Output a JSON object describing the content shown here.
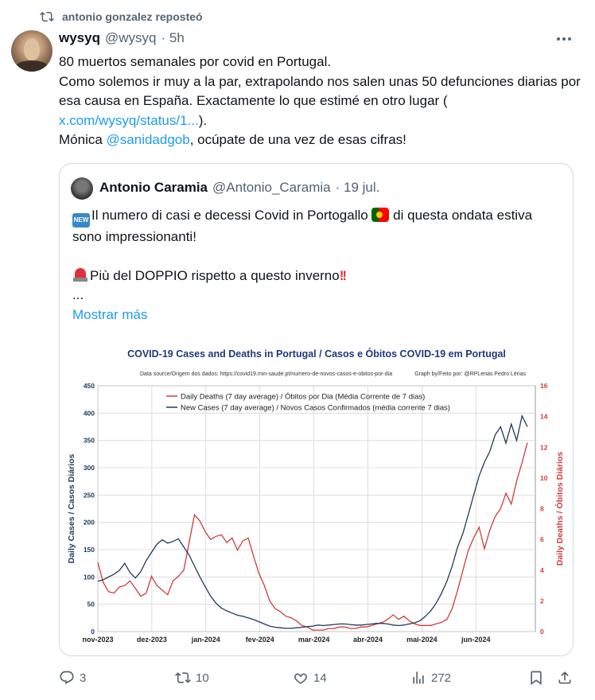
{
  "repost": {
    "label": "antonio gonzalez reposteó"
  },
  "tweet": {
    "name": "wysyq",
    "handle": "@wysyq",
    "time": "· 5h",
    "line1": "80 muertos semanales por covid en Portugal.",
    "line2": "Como solemos ir muy a la par, extrapolando nos salen unas 50 defunciones diarias por esa causa en España. Exactamente lo que estimé en otro lugar ( ",
    "link": "x.com/wysyq/status/1...",
    "line2_end": ").",
    "line3_start": "Mónica ",
    "mention": "@sanidadgob",
    "line3_end": ", ocúpate de una vez de esas cifras!"
  },
  "quote": {
    "name": "Antonio Caramia",
    "handle": "@Antonio_Caramia",
    "time": "· 19 jul.",
    "line1": "Il numero di casi e decessi Covid in Portogallo ",
    "line1_end": " di questa ondata estiva sono impressionanti!",
    "line2": "Più del DOPPIO rispetto a questo inverno",
    "line2_bang": "!!",
    "ellipsis": "...",
    "show_more": "Mostrar más"
  },
  "actions": {
    "replies": "3",
    "reposts": "10",
    "likes": "14",
    "views": "272"
  },
  "colors": {
    "cases": "#1f3a5a",
    "deaths": "#d03c3c",
    "title": "#1f3a7a",
    "link": "#1d9bf0"
  },
  "chart_data": {
    "type": "line",
    "title": "COVID-19 Cases and Deaths in Portugal  /  Casos e Óbitos COVID-19 em Portugal",
    "source": "Data source/Origem dos dados: https://covid19.min-saude.pt/numero-de-novos-casos-e-obitos-por-dia",
    "credit": "Graph by/Feito por: @RPLerias Pedro Lérias",
    "ylabel": "Daily Cases / Casos Diários",
    "y2label": "Daily Deaths / Óbitos Diários",
    "ylim": [
      0,
      450
    ],
    "y2lim": [
      0,
      16
    ],
    "yticks": [
      "0",
      "50",
      "100",
      "150",
      "200",
      "250",
      "300",
      "350",
      "400",
      "450"
    ],
    "y2ticks": [
      "0",
      "2",
      "4",
      "6",
      "8",
      "10",
      "12",
      "14",
      "16"
    ],
    "xticks": [
      "nov-2023",
      "dez-2023",
      "jan-2024",
      "fev-2024",
      "mar-2024",
      "abr-2024",
      "mai-2024",
      "jun-2024"
    ],
    "legend_position": "top",
    "series": [
      {
        "name": "Daily Deaths (7 day average) / Óbitos por Dia (Média Corrente de 7 dias)",
        "axis": "right",
        "x": [
          0,
          3,
          6,
          9,
          12,
          15,
          18,
          21,
          24,
          27,
          30,
          33,
          36,
          39,
          42,
          45,
          48,
          51,
          54,
          57,
          60,
          63,
          66,
          69,
          72,
          75,
          78,
          81,
          84,
          87,
          90,
          93,
          96,
          99,
          102,
          105,
          108,
          111,
          114,
          117,
          120,
          123,
          126,
          129,
          132,
          135,
          138,
          141,
          144,
          147,
          150,
          153,
          156,
          159,
          162,
          165,
          168,
          171,
          174,
          177,
          180,
          183,
          186,
          189,
          192,
          195,
          198,
          201,
          204,
          207,
          210,
          213,
          216,
          219,
          222,
          225,
          228,
          231,
          234,
          237,
          240
        ],
        "values": [
          4.5,
          3.2,
          2.6,
          2.5,
          2.9,
          3.0,
          3.3,
          2.8,
          2.3,
          2.5,
          3.6,
          3.0,
          2.7,
          2.4,
          3.3,
          3.6,
          4.0,
          5.8,
          7.6,
          7.2,
          6.5,
          6.0,
          6.2,
          6.3,
          5.8,
          6.1,
          5.3,
          5.9,
          6.1,
          4.9,
          3.8,
          3.0,
          2.0,
          1.5,
          1.3,
          1.0,
          0.9,
          0.7,
          0.4,
          0.3,
          0.1,
          0.1,
          0.1,
          0.2,
          0.2,
          0.3,
          0.3,
          0.2,
          0.2,
          0.3,
          0.3,
          0.4,
          0.5,
          0.6,
          0.8,
          1.1,
          0.8,
          1.0,
          0.7,
          0.5,
          0.4,
          0.4,
          0.4,
          0.5,
          0.6,
          0.8,
          1.5,
          2.7,
          4.0,
          5.3,
          6.1,
          6.8,
          5.4,
          6.6,
          7.5,
          8.0,
          9.0,
          8.3,
          9.8,
          11.0,
          12.3
        ]
      },
      {
        "name": "New Cases (7 day average) / Novos Casos Confirmados (média corrente 7 dias)",
        "axis": "left",
        "x": [
          0,
          3,
          6,
          9,
          12,
          15,
          18,
          21,
          24,
          27,
          30,
          33,
          36,
          39,
          42,
          45,
          48,
          51,
          54,
          57,
          60,
          63,
          66,
          69,
          72,
          75,
          78,
          81,
          84,
          87,
          90,
          93,
          96,
          99,
          102,
          105,
          108,
          111,
          114,
          117,
          120,
          123,
          126,
          129,
          132,
          135,
          138,
          141,
          144,
          147,
          150,
          153,
          156,
          159,
          162,
          165,
          168,
          171,
          174,
          177,
          180,
          183,
          186,
          189,
          192,
          195,
          198,
          201,
          204,
          207,
          210,
          213,
          216,
          219,
          222,
          225,
          228,
          231,
          234,
          237,
          240
        ],
        "values": [
          92,
          95,
          100,
          105,
          112,
          125,
          108,
          98,
          110,
          130,
          145,
          160,
          168,
          162,
          165,
          170,
          155,
          140,
          120,
          100,
          82,
          65,
          52,
          43,
          38,
          34,
          30,
          28,
          25,
          22,
          18,
          14,
          10,
          8,
          7,
          6,
          6,
          7,
          8,
          9,
          10,
          12,
          11,
          12,
          13,
          14,
          14,
          13,
          12,
          12,
          13,
          14,
          15,
          15,
          14,
          12,
          11,
          12,
          14,
          16,
          20,
          28,
          38,
          52,
          70,
          92,
          120,
          155,
          180,
          215,
          250,
          285,
          310,
          330,
          360,
          375,
          345,
          380,
          350,
          395,
          375
        ]
      }
    ],
    "xmax": 240
  }
}
